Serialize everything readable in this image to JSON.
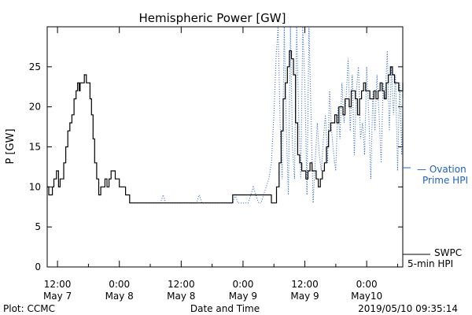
{
  "chart_data": {
    "type": "line",
    "title": "Hemispheric Power [GW]",
    "xlabel": "Date and Time",
    "ylabel": "P [GW]",
    "ylim": [
      0,
      30
    ],
    "x_unit": "hours from 2019-05-07 00:00",
    "xlim": [
      10,
      79
    ],
    "grid": false,
    "y_ticks": [
      0,
      5,
      10,
      15,
      20,
      25
    ],
    "x_ticks": [
      {
        "hour": 12,
        "time": "12:00",
        "date": "May 7"
      },
      {
        "hour": 24,
        "time": "0:00",
        "date": "May 8"
      },
      {
        "hour": 36,
        "time": "12:00",
        "date": "May 8"
      },
      {
        "hour": 48,
        "time": "0:00",
        "date": "May 9"
      },
      {
        "hour": 60,
        "time": "12:00",
        "date": "May 9"
      },
      {
        "hour": 72,
        "time": "0:00",
        "date": "May10"
      }
    ],
    "series": [
      {
        "name": "SWPC 5-min HPI",
        "color": "#000000",
        "style": "solid",
        "x": [
          10.0,
          10.3,
          10.6,
          11.0,
          11.3,
          11.6,
          11.8,
          12.2,
          12.5,
          12.8,
          13.2,
          13.6,
          14.0,
          14.4,
          14.8,
          15.2,
          15.6,
          15.9,
          16.2,
          16.4,
          16.8,
          17.2,
          17.6,
          17.9,
          18.3,
          18.6,
          18.9,
          19.2,
          19.6,
          20.0,
          20.4,
          20.8,
          21.2,
          21.6,
          22.0,
          22.4,
          22.8,
          23.2,
          23.6,
          24.0,
          24.4,
          24.8,
          25.2,
          25.6,
          26.0,
          26.4,
          26.8,
          27.2,
          30.0,
          36.0,
          42.0,
          46.0,
          50.0,
          53.0,
          53.5,
          54.0,
          54.5,
          55.0,
          55.4,
          55.8,
          56.2,
          56.6,
          57.0,
          57.4,
          57.8,
          58.2,
          58.6,
          59.0,
          59.4,
          59.8,
          60.2,
          60.6,
          61.0,
          61.4,
          61.8,
          62.2,
          62.6,
          63.0,
          63.4,
          63.8,
          64.2,
          64.6,
          65.0,
          65.4,
          65.8,
          66.2,
          66.6,
          67.0,
          67.4,
          67.8,
          68.2,
          68.6,
          69.0,
          69.4,
          69.8,
          70.2,
          70.6,
          71.0,
          71.4,
          71.8,
          72.2,
          72.6,
          73.0,
          73.4,
          73.8,
          74.2,
          74.6,
          75.0,
          75.4,
          75.8,
          76.2,
          76.6,
          77.0,
          77.4,
          77.8,
          78.2,
          78.6,
          79.0
        ],
        "y": [
          10,
          9,
          9,
          10,
          11,
          11,
          12,
          10,
          11,
          11,
          13,
          15,
          17,
          18,
          19,
          21,
          22,
          23,
          22,
          23,
          23,
          24,
          23,
          23,
          21,
          19,
          16,
          13,
          11,
          9,
          10,
          10,
          11,
          10,
          11,
          12,
          12,
          11,
          11,
          10,
          10,
          10,
          9,
          9,
          8,
          8,
          8,
          8,
          8,
          8,
          8,
          9,
          9,
          9,
          8,
          8,
          10,
          13,
          17,
          21,
          23,
          25,
          27,
          26,
          24,
          18,
          14,
          13,
          12,
          12,
          11,
          12,
          13,
          12,
          12,
          11,
          10,
          11,
          12,
          13,
          15,
          17,
          18,
          18,
          19,
          18,
          20,
          20,
          19,
          21,
          21,
          20,
          22,
          22,
          21,
          19,
          21,
          22,
          23,
          22,
          22,
          21,
          21,
          22,
          21,
          22,
          23,
          22,
          21,
          23,
          24,
          25,
          24,
          23,
          23,
          22,
          22,
          23
        ]
      },
      {
        "name": "Ovation Prime HPI",
        "color": "#2060c0",
        "style": "dotted",
        "x": [
          26.0,
          30.0,
          32.0,
          32.5,
          33.0,
          36.0,
          39.0,
          39.5,
          40.0,
          43.0,
          46.0,
          46.5,
          47.0,
          49.0,
          49.5,
          50.0,
          50.5,
          51.0,
          51.5,
          52.0,
          52.5,
          53.0,
          53.5,
          54.0,
          54.4,
          54.8,
          55.2,
          55.6,
          56.0,
          56.4,
          56.8,
          57.2,
          57.6,
          58.0,
          58.4,
          58.8,
          59.2,
          59.6,
          60.0,
          60.4,
          60.8,
          61.2,
          61.6,
          62.0,
          62.4,
          62.8,
          63.2,
          63.6,
          64.0,
          64.4,
          64.8,
          65.2,
          65.6,
          66.0,
          66.4,
          66.8,
          67.2,
          67.6,
          68.0,
          68.4,
          68.8,
          69.2,
          69.6,
          70.0,
          70.4,
          70.8,
          71.2,
          71.6,
          72.0,
          72.4,
          72.8,
          73.2,
          73.6,
          74.0,
          74.4,
          74.8,
          75.2,
          75.6,
          76.0,
          76.4,
          76.8,
          77.2,
          77.6,
          78.0,
          78.4,
          78.8,
          79.0
        ],
        "y": [
          8,
          8,
          8,
          9,
          8,
          8,
          8,
          9,
          8,
          8,
          8,
          9,
          8,
          8,
          9,
          10,
          9,
          8,
          8,
          9,
          10,
          11,
          13,
          19,
          26,
          30,
          18,
          11,
          30,
          17,
          9,
          30,
          15,
          11,
          30,
          19,
          11,
          30,
          23,
          9,
          30,
          19,
          8,
          13,
          18,
          14,
          12,
          16,
          19,
          13,
          22,
          17,
          14,
          12,
          20,
          16,
          23,
          18,
          21,
          26,
          17,
          24,
          14,
          22,
          25,
          16,
          18,
          14,
          25,
          19,
          11,
          22,
          17,
          24,
          19,
          13,
          23,
          21,
          27,
          17,
          25,
          19,
          24,
          12,
          23,
          14,
          21
        ]
      }
    ],
    "legend": {
      "position": "right",
      "entries": [
        {
          "text": "— Ovation",
          "color": "#2060c0"
        },
        {
          "text": "Prime HPI",
          "color": "#2060c0"
        },
        {
          "text": "SWPC",
          "color": "#000000"
        },
        {
          "text": "5-min HPI",
          "color": "#000000"
        }
      ]
    },
    "footer_left": "Plot: CCMC",
    "footer_right": "2019/05/10 09:35:14"
  }
}
